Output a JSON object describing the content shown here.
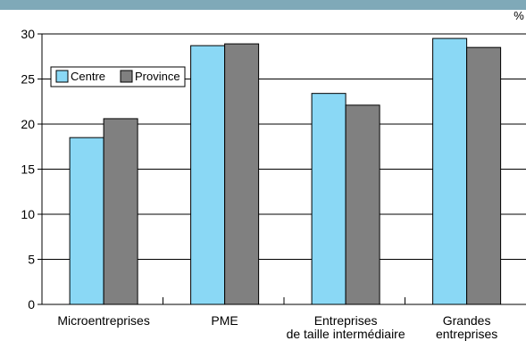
{
  "chart_data": {
    "type": "bar",
    "title": "",
    "xlabel": "",
    "ylabel": "",
    "unit": "%",
    "ylim": [
      0,
      30
    ],
    "yticks": [
      "0",
      "5",
      "10",
      "15",
      "20",
      "25",
      "30"
    ],
    "grid": true,
    "legend_position": "top-left",
    "categories": [
      [
        "Microentreprises"
      ],
      [
        "PME"
      ],
      [
        "Entreprises",
        "de taille intermédiaire"
      ],
      [
        "Grandes",
        "entreprises"
      ]
    ],
    "series": [
      {
        "name": "Centre",
        "color": "#8ad8f5",
        "values": [
          18.5,
          28.7,
          23.4,
          29.5
        ]
      },
      {
        "name": "Province",
        "color": "#808080",
        "values": [
          20.6,
          28.9,
          22.1,
          28.5
        ]
      }
    ]
  }
}
